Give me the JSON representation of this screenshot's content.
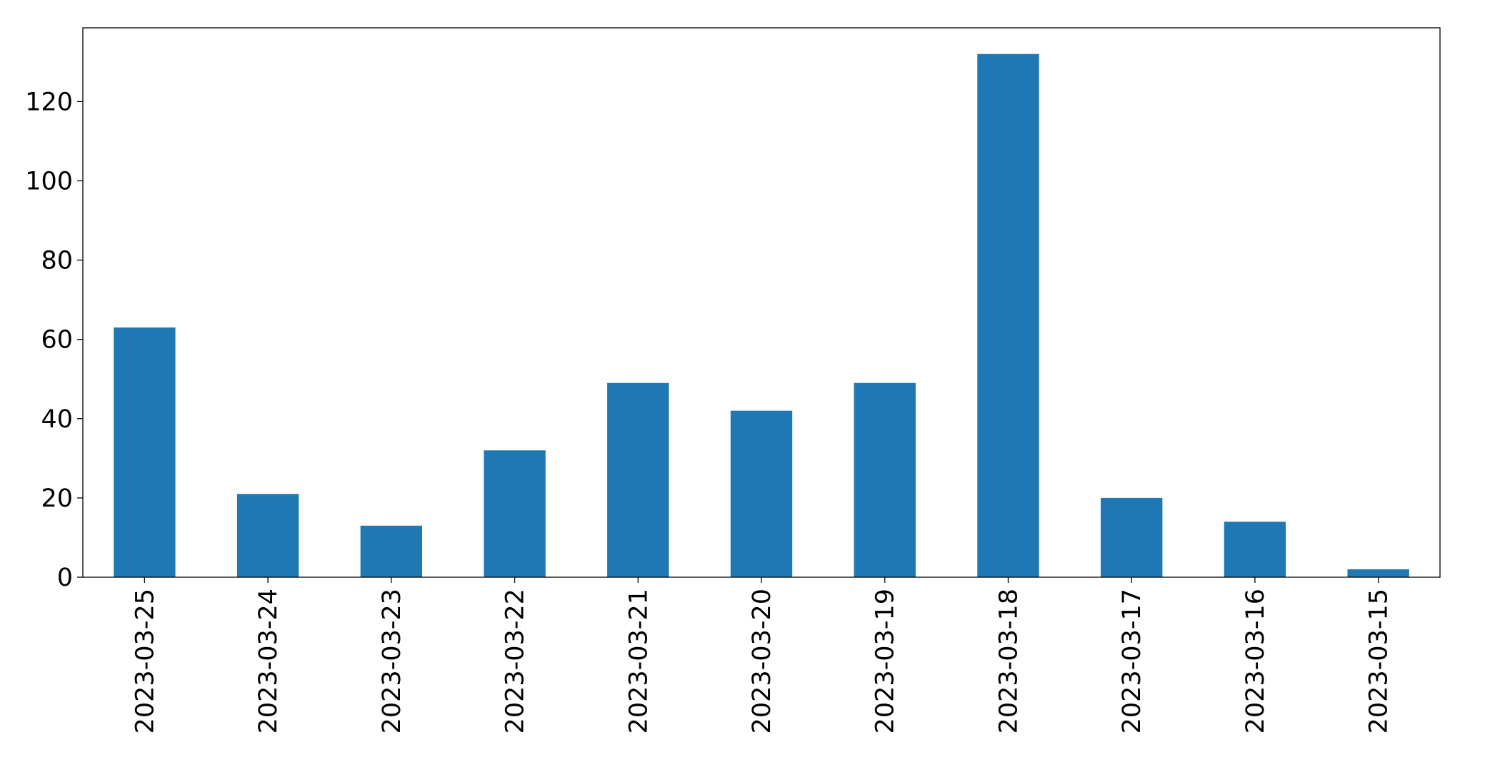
{
  "chart_data": {
    "type": "bar",
    "categories": [
      "2023-03-25",
      "2023-03-24",
      "2023-03-23",
      "2023-03-22",
      "2023-03-21",
      "2023-03-20",
      "2023-03-19",
      "2023-03-18",
      "2023-03-17",
      "2023-03-16",
      "2023-03-15"
    ],
    "values": [
      63,
      21,
      13,
      32,
      49,
      42,
      49,
      132,
      20,
      14,
      2
    ],
    "color": "#1f77b4",
    "ylim": [
      0,
      138.6
    ],
    "yticks": [
      0,
      20,
      40,
      60,
      80,
      100,
      120
    ],
    "grid": false
  }
}
